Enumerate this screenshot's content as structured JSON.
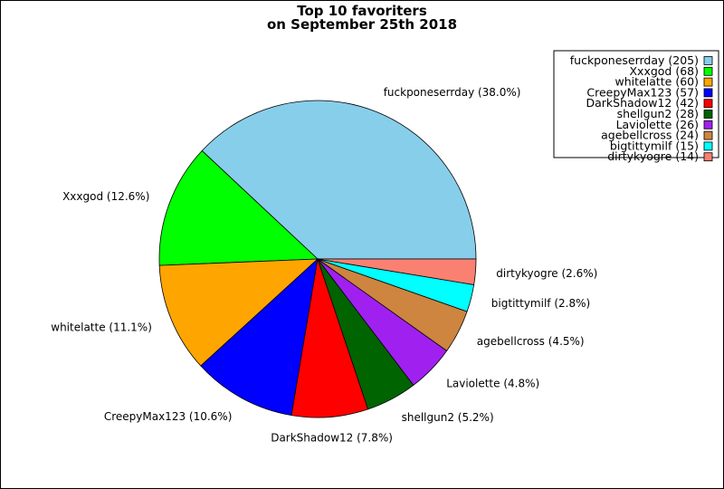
{
  "chart_data": {
    "type": "pie",
    "title": "Top 10 favoriters",
    "subtitle": "on September 25th 2018",
    "slices": [
      {
        "name": "fuckponeserrday",
        "value": 205,
        "percent": "38.0%",
        "color": "#87ceeb"
      },
      {
        "name": "Xxxgod",
        "value": 68,
        "percent": "12.6%",
        "color": "#00ff00"
      },
      {
        "name": "whitelatte",
        "value": 60,
        "percent": "11.1%",
        "color": "#ffa500"
      },
      {
        "name": "CreepyMax123",
        "value": 57,
        "percent": "10.6%",
        "color": "#0000ff"
      },
      {
        "name": "DarkShadow12",
        "value": 42,
        "percent": "7.8%",
        "color": "#ff0000"
      },
      {
        "name": "shellgun2",
        "value": 28,
        "percent": "5.2%",
        "color": "#006400"
      },
      {
        "name": "Laviolette",
        "value": 26,
        "percent": "4.8%",
        "color": "#a020f0"
      },
      {
        "name": "agebellcross",
        "value": 24,
        "percent": "4.5%",
        "color": "#cd853f"
      },
      {
        "name": "bigtittymilf",
        "value": 15,
        "percent": "2.8%",
        "color": "#00ffff"
      },
      {
        "name": "dirtykyogre",
        "value": 14,
        "percent": "2.6%",
        "color": "#fa8072"
      }
    ],
    "legend_position": "top-right",
    "start_angle": "east",
    "direction": "counterclockwise"
  }
}
